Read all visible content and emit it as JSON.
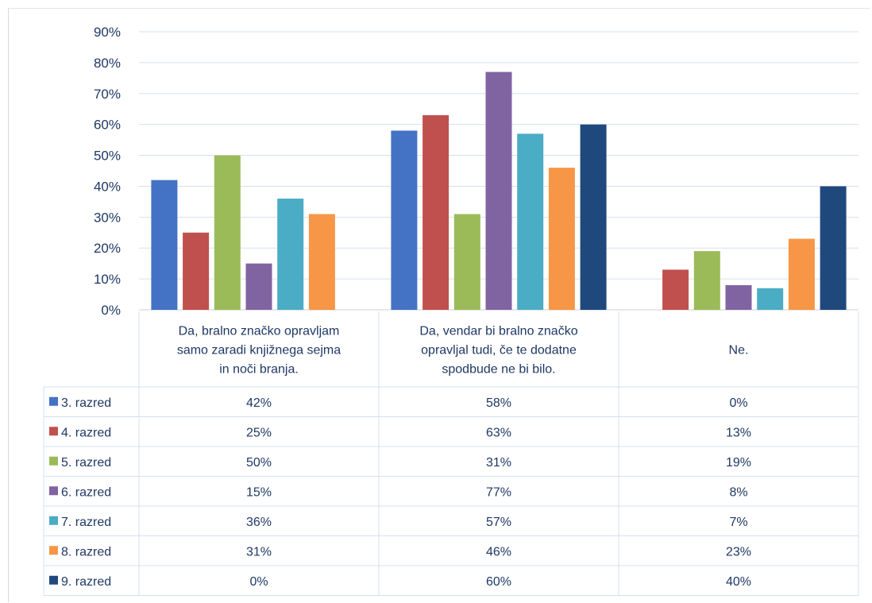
{
  "chart_data": {
    "type": "bar",
    "title": "",
    "xlabel": "",
    "ylabel": "",
    "ylim": [
      0,
      90
    ],
    "yticks": [
      "0%",
      "10%",
      "20%",
      "30%",
      "40%",
      "50%",
      "60%",
      "70%",
      "80%",
      "90%"
    ],
    "grid": true,
    "legend": "data-table",
    "categories": [
      [
        "Da, bralno značko opravljam",
        "samo zaradi knjižnega sejma",
        "in noči branja."
      ],
      [
        "Da, vendar bi bralno značko",
        "opravljal tudi, če te dodatne",
        "spodbude ne bi bilo."
      ],
      [
        "Ne."
      ]
    ],
    "series": [
      {
        "name": "3. razred",
        "color": "#4472c4",
        "values": [
          42,
          58,
          0
        ],
        "labels": [
          "42%",
          "58%",
          "0%"
        ]
      },
      {
        "name": "4. razred",
        "color": "#c0504d",
        "values": [
          25,
          63,
          13
        ],
        "labels": [
          "25%",
          "63%",
          "13%"
        ]
      },
      {
        "name": "5. razred",
        "color": "#9bbb59",
        "values": [
          50,
          31,
          19
        ],
        "labels": [
          "50%",
          "31%",
          "19%"
        ]
      },
      {
        "name": "6. razred",
        "color": "#8064a2",
        "values": [
          15,
          77,
          8
        ],
        "labels": [
          "15%",
          "77%",
          "8%"
        ]
      },
      {
        "name": "7. razred",
        "color": "#4bacc6",
        "values": [
          36,
          57,
          7
        ],
        "labels": [
          "36%",
          "57%",
          "7%"
        ]
      },
      {
        "name": "8. razred",
        "color": "#f79646",
        "values": [
          31,
          46,
          23
        ],
        "labels": [
          "31%",
          "46%",
          "23%"
        ]
      },
      {
        "name": "9. razred",
        "color": "#1f497d",
        "values": [
          0,
          60,
          40
        ],
        "labels": [
          "0%",
          "60%",
          "40%"
        ]
      }
    ]
  }
}
